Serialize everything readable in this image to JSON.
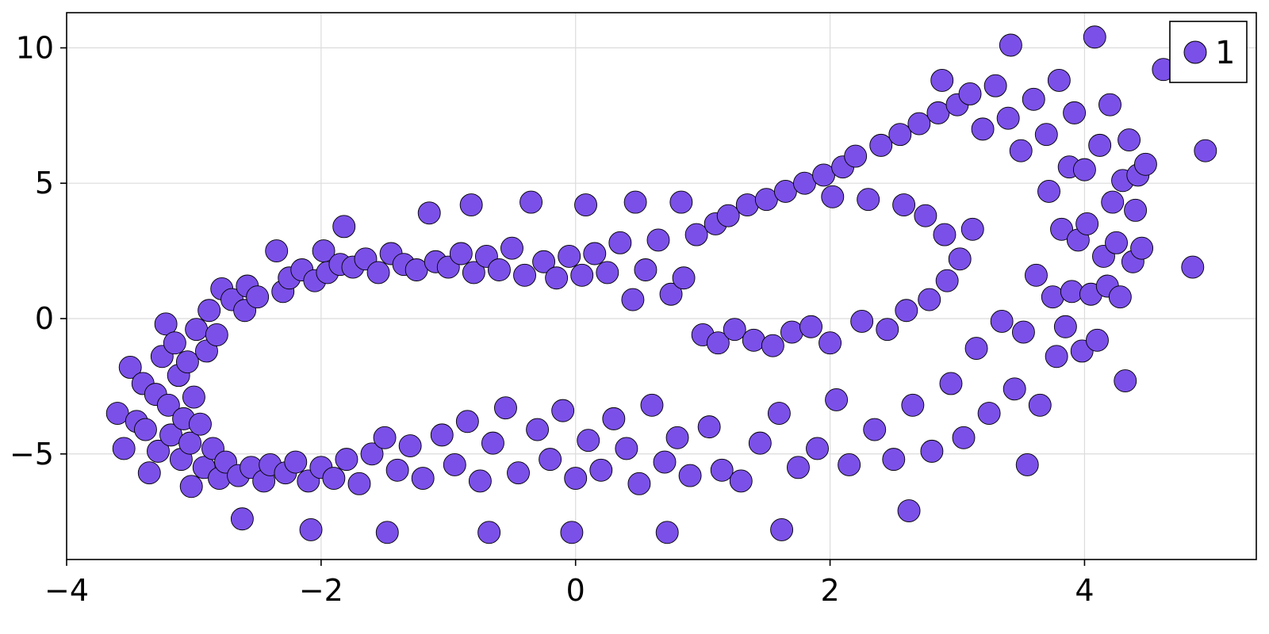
{
  "chart_data": {
    "type": "scatter",
    "title": "",
    "xlabel": "",
    "ylabel": "",
    "xlim": [
      -4,
      5.35
    ],
    "ylim": [
      -8.9,
      11.3
    ],
    "xticks": [
      -4,
      -2,
      0,
      2,
      4
    ],
    "yticks": [
      -5,
      0,
      5,
      10
    ],
    "xtick_labels": [
      "−4",
      "−2",
      "0",
      "2",
      "4"
    ],
    "ytick_labels": [
      "−5",
      "0",
      "5",
      "10"
    ],
    "grid": true,
    "legend": {
      "position": "top-right",
      "entries": [
        "1"
      ]
    },
    "marker_color": "#7B50E8",
    "marker_edge_color": "#000000",
    "series": [
      {
        "name": "1",
        "points": [
          [
            -3.6,
            -3.5
          ],
          [
            -3.55,
            -4.8
          ],
          [
            -3.5,
            -1.8
          ],
          [
            -3.45,
            -3.8
          ],
          [
            -3.4,
            -2.4
          ],
          [
            -3.38,
            -4.1
          ],
          [
            -3.35,
            -5.7
          ],
          [
            -3.3,
            -2.8
          ],
          [
            -3.28,
            -4.9
          ],
          [
            -3.25,
            -1.4
          ],
          [
            -3.22,
            -0.2
          ],
          [
            -3.2,
            -3.2
          ],
          [
            -3.18,
            -4.3
          ],
          [
            -3.15,
            -0.9
          ],
          [
            -3.12,
            -2.1
          ],
          [
            -3.1,
            -5.2
          ],
          [
            -3.08,
            -3.7
          ],
          [
            -3.05,
            -1.6
          ],
          [
            -3.03,
            -4.6
          ],
          [
            -3.02,
            -6.2
          ],
          [
            -3.0,
            -2.9
          ],
          [
            -2.98,
            -0.4
          ],
          [
            -2.95,
            -3.9
          ],
          [
            -2.92,
            -5.5
          ],
          [
            -2.9,
            -1.2
          ],
          [
            -2.88,
            0.3
          ],
          [
            -2.85,
            -4.8
          ],
          [
            -2.82,
            -0.6
          ],
          [
            -2.8,
            -5.9
          ],
          [
            -2.78,
            1.1
          ],
          [
            -2.75,
            -5.3
          ],
          [
            -2.7,
            0.7
          ],
          [
            -2.65,
            -5.8
          ],
          [
            -2.62,
            -7.4
          ],
          [
            -2.6,
            0.3
          ],
          [
            -2.58,
            1.2
          ],
          [
            -2.55,
            -5.5
          ],
          [
            -2.5,
            0.8
          ],
          [
            -2.45,
            -6.0
          ],
          [
            -2.4,
            -5.4
          ],
          [
            -2.35,
            2.5
          ],
          [
            -2.3,
            1.0
          ],
          [
            -2.28,
            -5.7
          ],
          [
            -2.25,
            1.5
          ],
          [
            -2.2,
            -5.3
          ],
          [
            -2.15,
            1.8
          ],
          [
            -2.1,
            -6.0
          ],
          [
            -2.08,
            -7.8
          ],
          [
            -2.05,
            1.4
          ],
          [
            -2.0,
            -5.5
          ],
          [
            -1.98,
            2.5
          ],
          [
            -1.95,
            1.7
          ],
          [
            -1.9,
            -5.9
          ],
          [
            -1.85,
            2.0
          ],
          [
            -1.82,
            3.4
          ],
          [
            -1.8,
            -5.2
          ],
          [
            -1.75,
            1.9
          ],
          [
            -1.7,
            -6.1
          ],
          [
            -1.65,
            2.2
          ],
          [
            -1.6,
            -5.0
          ],
          [
            -1.55,
            1.7
          ],
          [
            -1.5,
            -4.4
          ],
          [
            -1.48,
            -7.9
          ],
          [
            -1.45,
            2.4
          ],
          [
            -1.4,
            -5.6
          ],
          [
            -1.35,
            2.0
          ],
          [
            -1.3,
            -4.7
          ],
          [
            -1.25,
            1.8
          ],
          [
            -1.2,
            -5.9
          ],
          [
            -1.15,
            3.9
          ],
          [
            -1.1,
            2.1
          ],
          [
            -1.05,
            -4.3
          ],
          [
            -1.0,
            1.9
          ],
          [
            -0.95,
            -5.4
          ],
          [
            -0.9,
            2.4
          ],
          [
            -0.85,
            -3.8
          ],
          [
            -0.82,
            4.2
          ],
          [
            -0.8,
            1.7
          ],
          [
            -0.75,
            -6.0
          ],
          [
            -0.7,
            2.3
          ],
          [
            -0.68,
            -7.9
          ],
          [
            -0.65,
            -4.6
          ],
          [
            -0.6,
            1.8
          ],
          [
            -0.55,
            -3.3
          ],
          [
            -0.5,
            2.6
          ],
          [
            -0.45,
            -5.7
          ],
          [
            -0.4,
            1.6
          ],
          [
            -0.35,
            4.3
          ],
          [
            -0.3,
            -4.1
          ],
          [
            -0.25,
            2.1
          ],
          [
            -0.2,
            -5.2
          ],
          [
            -0.15,
            1.5
          ],
          [
            -0.1,
            -3.4
          ],
          [
            -0.05,
            2.3
          ],
          [
            -0.03,
            -7.9
          ],
          [
            0.0,
            -5.9
          ],
          [
            0.05,
            1.6
          ],
          [
            0.08,
            4.2
          ],
          [
            0.1,
            -4.5
          ],
          [
            0.15,
            2.4
          ],
          [
            0.2,
            -5.6
          ],
          [
            0.25,
            1.7
          ],
          [
            0.3,
            -3.7
          ],
          [
            0.35,
            2.8
          ],
          [
            0.4,
            -4.8
          ],
          [
            0.45,
            0.7
          ],
          [
            0.47,
            4.3
          ],
          [
            0.5,
            -6.1
          ],
          [
            0.55,
            1.8
          ],
          [
            0.6,
            -3.2
          ],
          [
            0.65,
            2.9
          ],
          [
            0.7,
            -5.3
          ],
          [
            0.72,
            -7.9
          ],
          [
            0.75,
            0.9
          ],
          [
            0.8,
            -4.4
          ],
          [
            0.83,
            4.3
          ],
          [
            0.85,
            1.5
          ],
          [
            0.9,
            -5.8
          ],
          [
            0.95,
            3.1
          ],
          [
            1.0,
            -0.6
          ],
          [
            1.05,
            -4.0
          ],
          [
            1.1,
            3.5
          ],
          [
            1.12,
            -0.9
          ],
          [
            1.15,
            -5.6
          ],
          [
            1.2,
            3.8
          ],
          [
            1.25,
            -0.4
          ],
          [
            1.3,
            -6.0
          ],
          [
            1.35,
            4.2
          ],
          [
            1.4,
            -0.8
          ],
          [
            1.45,
            -4.6
          ],
          [
            1.5,
            4.4
          ],
          [
            1.55,
            -1.0
          ],
          [
            1.6,
            -3.5
          ],
          [
            1.62,
            -7.8
          ],
          [
            1.65,
            4.7
          ],
          [
            1.7,
            -0.5
          ],
          [
            1.75,
            -5.5
          ],
          [
            1.8,
            5.0
          ],
          [
            1.85,
            -0.3
          ],
          [
            1.9,
            -4.8
          ],
          [
            1.95,
            5.3
          ],
          [
            2.0,
            -0.9
          ],
          [
            2.02,
            4.5
          ],
          [
            2.05,
            -3.0
          ],
          [
            2.1,
            5.6
          ],
          [
            2.15,
            -5.4
          ],
          [
            2.2,
            6.0
          ],
          [
            2.25,
            -0.1
          ],
          [
            2.3,
            4.4
          ],
          [
            2.35,
            -4.1
          ],
          [
            2.4,
            6.4
          ],
          [
            2.45,
            -0.4
          ],
          [
            2.5,
            -5.2
          ],
          [
            2.55,
            6.8
          ],
          [
            2.58,
            4.2
          ],
          [
            2.6,
            0.3
          ],
          [
            2.62,
            -7.1
          ],
          [
            2.65,
            -3.2
          ],
          [
            2.7,
            7.2
          ],
          [
            2.75,
            3.8
          ],
          [
            2.78,
            0.7
          ],
          [
            2.8,
            -4.9
          ],
          [
            2.85,
            7.6
          ],
          [
            2.88,
            8.8
          ],
          [
            2.9,
            3.1
          ],
          [
            2.92,
            1.4
          ],
          [
            2.95,
            -2.4
          ],
          [
            3.0,
            7.9
          ],
          [
            3.02,
            2.2
          ],
          [
            3.05,
            -4.4
          ],
          [
            3.1,
            8.3
          ],
          [
            3.12,
            3.3
          ],
          [
            3.15,
            -1.1
          ],
          [
            3.2,
            7.0
          ],
          [
            3.25,
            -3.5
          ],
          [
            3.3,
            8.6
          ],
          [
            3.35,
            -0.1
          ],
          [
            3.4,
            7.4
          ],
          [
            3.42,
            10.1
          ],
          [
            3.45,
            -2.6
          ],
          [
            3.5,
            6.2
          ],
          [
            3.52,
            -0.5
          ],
          [
            3.55,
            -5.4
          ],
          [
            3.6,
            8.1
          ],
          [
            3.62,
            1.6
          ],
          [
            3.65,
            -3.2
          ],
          [
            3.7,
            6.8
          ],
          [
            3.72,
            4.7
          ],
          [
            3.75,
            0.8
          ],
          [
            3.78,
            -1.4
          ],
          [
            3.8,
            8.8
          ],
          [
            3.82,
            3.3
          ],
          [
            3.85,
            -0.3
          ],
          [
            3.88,
            5.6
          ],
          [
            3.9,
            1.0
          ],
          [
            3.92,
            7.6
          ],
          [
            3.95,
            2.9
          ],
          [
            3.98,
            -1.2
          ],
          [
            4.0,
            5.5
          ],
          [
            4.02,
            3.5
          ],
          [
            4.05,
            0.9
          ],
          [
            4.08,
            10.4
          ],
          [
            4.1,
            -0.8
          ],
          [
            4.12,
            6.4
          ],
          [
            4.15,
            2.3
          ],
          [
            4.18,
            1.2
          ],
          [
            4.2,
            7.9
          ],
          [
            4.22,
            4.3
          ],
          [
            4.25,
            2.8
          ],
          [
            4.28,
            0.8
          ],
          [
            4.3,
            5.1
          ],
          [
            4.32,
            -2.3
          ],
          [
            4.35,
            6.6
          ],
          [
            4.38,
            2.1
          ],
          [
            4.4,
            4.0
          ],
          [
            4.42,
            5.3
          ],
          [
            4.45,
            2.6
          ],
          [
            4.48,
            5.7
          ],
          [
            4.62,
            9.2
          ],
          [
            4.85,
            1.9
          ],
          [
            4.95,
            6.2
          ]
        ]
      }
    ]
  }
}
